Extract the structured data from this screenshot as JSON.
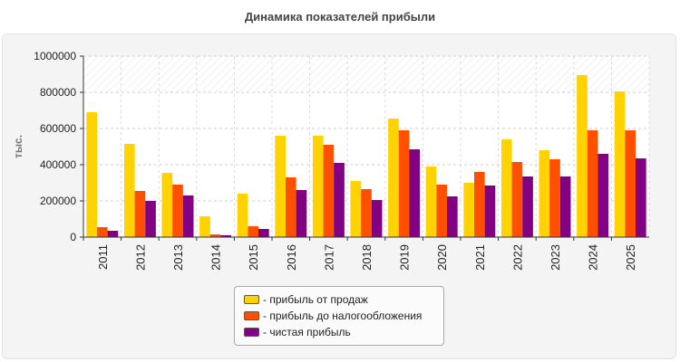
{
  "chart_data": {
    "type": "bar",
    "title": "Динамика показателей прибыли",
    "ylabel": "тыс.",
    "xlabel": "",
    "ylim": [
      0,
      1000000
    ],
    "yticks": [
      0,
      200000,
      400000,
      600000,
      800000,
      1000000
    ],
    "grid": true,
    "legend_position": "bottom-center",
    "categories": [
      "2011",
      "2012",
      "2013",
      "2014",
      "2015",
      "2016",
      "2017",
      "2018",
      "2019",
      "2020",
      "2021",
      "2022",
      "2023",
      "2024",
      "2025"
    ],
    "series": [
      {
        "name": "- прибыль от продаж",
        "color": "#FFD200",
        "values": [
          690000,
          515000,
          355000,
          115000,
          240000,
          560000,
          560000,
          310000,
          655000,
          390000,
          300000,
          540000,
          480000,
          895000,
          805000
        ]
      },
      {
        "name": "- прибыль до налогообложения",
        "color": "#FF5000",
        "values": [
          55000,
          255000,
          290000,
          15000,
          60000,
          330000,
          510000,
          265000,
          590000,
          290000,
          360000,
          415000,
          430000,
          590000,
          590000
        ]
      },
      {
        "name": "- чистая прибыль",
        "color": "#820082",
        "values": [
          35000,
          200000,
          230000,
          10000,
          45000,
          260000,
          410000,
          205000,
          485000,
          225000,
          285000,
          335000,
          335000,
          460000,
          435000
        ]
      }
    ]
  }
}
